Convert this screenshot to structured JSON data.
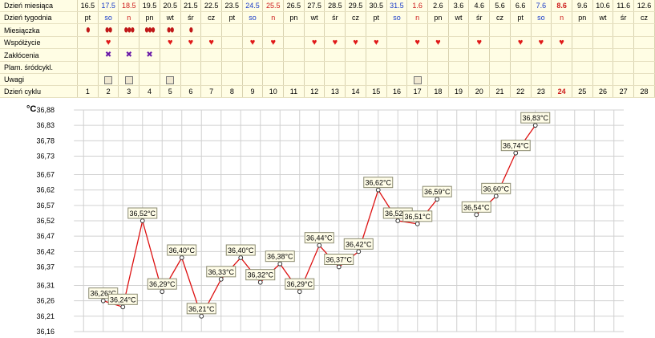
{
  "calendar": {
    "row_labels": {
      "day_of_month": "Dzień miesiąca",
      "day_of_week": "Dzień tygodnia",
      "menstruation": "Miesiączka",
      "intercourse": "Współżycie",
      "disturbances": "Zakłócenia",
      "spotting": "Plam. śródcykl.",
      "notes": "Uwagi",
      "cycle_day": "Dzień cyklu"
    },
    "days": [
      {
        "dom": "16.5",
        "dow": "pt",
        "tone": "black",
        "menses": 1,
        "love": false,
        "dist": false,
        "note": false,
        "cycle": "1"
      },
      {
        "dom": "17.5",
        "dow": "so",
        "tone": "blue",
        "menses": 2,
        "love": true,
        "dist": true,
        "note": true,
        "cycle": "2"
      },
      {
        "dom": "18.5",
        "dow": "n",
        "tone": "red",
        "menses": 3,
        "love": false,
        "dist": true,
        "note": true,
        "cycle": "3"
      },
      {
        "dom": "19.5",
        "dow": "pn",
        "tone": "black",
        "menses": 3,
        "love": false,
        "dist": true,
        "note": false,
        "cycle": "4"
      },
      {
        "dom": "20.5",
        "dow": "wt",
        "tone": "black",
        "menses": 2,
        "love": true,
        "dist": false,
        "note": true,
        "cycle": "5"
      },
      {
        "dom": "21.5",
        "dow": "śr",
        "tone": "black",
        "menses": 1,
        "love": true,
        "dist": false,
        "note": false,
        "cycle": "6"
      },
      {
        "dom": "22.5",
        "dow": "cz",
        "tone": "black",
        "menses": 0,
        "love": true,
        "dist": false,
        "note": false,
        "cycle": "7"
      },
      {
        "dom": "23.5",
        "dow": "pt",
        "tone": "black",
        "menses": 0,
        "love": false,
        "dist": false,
        "note": false,
        "cycle": "8"
      },
      {
        "dom": "24.5",
        "dow": "so",
        "tone": "blue",
        "menses": 0,
        "love": true,
        "dist": false,
        "note": false,
        "cycle": "9"
      },
      {
        "dom": "25.5",
        "dow": "n",
        "tone": "red",
        "menses": 0,
        "love": true,
        "dist": false,
        "note": false,
        "cycle": "10"
      },
      {
        "dom": "26.5",
        "dow": "pn",
        "tone": "black",
        "menses": 0,
        "love": false,
        "dist": false,
        "note": false,
        "cycle": "11"
      },
      {
        "dom": "27.5",
        "dow": "wt",
        "tone": "black",
        "menses": 0,
        "love": true,
        "dist": false,
        "note": false,
        "cycle": "12"
      },
      {
        "dom": "28.5",
        "dow": "śr",
        "tone": "black",
        "menses": 0,
        "love": true,
        "dist": false,
        "note": false,
        "cycle": "13"
      },
      {
        "dom": "29.5",
        "dow": "cz",
        "tone": "black",
        "menses": 0,
        "love": true,
        "dist": false,
        "note": false,
        "cycle": "14"
      },
      {
        "dom": "30.5",
        "dow": "pt",
        "tone": "black",
        "menses": 0,
        "love": true,
        "dist": false,
        "note": false,
        "cycle": "15"
      },
      {
        "dom": "31.5",
        "dow": "so",
        "tone": "blue",
        "menses": 0,
        "love": false,
        "dist": false,
        "note": false,
        "cycle": "16"
      },
      {
        "dom": "1.6",
        "dow": "n",
        "tone": "red",
        "menses": 0,
        "love": true,
        "dist": false,
        "note": true,
        "cycle": "17"
      },
      {
        "dom": "2.6",
        "dow": "pn",
        "tone": "black",
        "menses": 0,
        "love": true,
        "dist": false,
        "note": false,
        "cycle": "18"
      },
      {
        "dom": "3.6",
        "dow": "wt",
        "tone": "black",
        "menses": 0,
        "love": false,
        "dist": false,
        "note": false,
        "cycle": "19"
      },
      {
        "dom": "4.6",
        "dow": "śr",
        "tone": "black",
        "menses": 0,
        "love": true,
        "dist": false,
        "note": false,
        "cycle": "20"
      },
      {
        "dom": "5.6",
        "dow": "cz",
        "tone": "black",
        "menses": 0,
        "love": false,
        "dist": false,
        "note": false,
        "cycle": "21"
      },
      {
        "dom": "6.6",
        "dow": "pt",
        "tone": "black",
        "menses": 0,
        "love": true,
        "dist": false,
        "note": false,
        "cycle": "22"
      },
      {
        "dom": "7.6",
        "dow": "so",
        "tone": "blue",
        "menses": 0,
        "love": true,
        "dist": false,
        "note": false,
        "cycle": "23"
      },
      {
        "dom": "8.6",
        "dow": "n",
        "tone": "red",
        "menses": 0,
        "love": true,
        "dist": false,
        "note": false,
        "cycle": "24",
        "today": true
      },
      {
        "dom": "9.6",
        "dow": "pn",
        "tone": "black",
        "menses": 0,
        "love": false,
        "dist": false,
        "note": false,
        "cycle": "25"
      },
      {
        "dom": "10.6",
        "dow": "wt",
        "tone": "black",
        "menses": 0,
        "love": false,
        "dist": false,
        "note": false,
        "cycle": "26"
      },
      {
        "dom": "11.6",
        "dow": "śr",
        "tone": "black",
        "menses": 0,
        "love": false,
        "dist": false,
        "note": false,
        "cycle": "27"
      },
      {
        "dom": "12.6",
        "dow": "cz",
        "tone": "black",
        "menses": 0,
        "love": false,
        "dist": false,
        "note": false,
        "cycle": "28"
      }
    ],
    "colors": {
      "weekday": "#000000",
      "saturday": "#1a3cc8",
      "sunday": "#cc1a1a",
      "heart": "#e01818",
      "disturbance": "#6a1aa8",
      "background": "#fffde4"
    },
    "icons": {
      "menstruation": "blood-drop-icon",
      "intercourse": "heart-icon",
      "disturbance": "x-mark-icon",
      "notes": "note-icon"
    }
  },
  "chart_data": {
    "type": "line",
    "ylabel": "°C",
    "ylim": [
      36.16,
      36.88
    ],
    "yticks": [
      "36,88",
      "36,83",
      "36,78",
      "36,73",
      "36,67",
      "36,62",
      "36,57",
      "36,52",
      "36,47",
      "36,42",
      "36,37",
      "36,31",
      "36,26",
      "36,21",
      "36,16"
    ],
    "ytick_values": [
      36.88,
      36.83,
      36.78,
      36.73,
      36.67,
      36.62,
      36.57,
      36.52,
      36.47,
      36.42,
      36.37,
      36.31,
      36.26,
      36.21,
      36.16
    ],
    "x_cycle_days": [
      1,
      28
    ],
    "grid": true,
    "line_color": "#dd1111",
    "segments": [
      [
        2,
        3,
        4,
        5,
        6,
        7,
        8,
        9,
        10,
        11,
        12,
        13,
        14,
        15,
        16,
        17,
        18,
        19
      ],
      [
        21,
        22,
        23,
        24
      ]
    ],
    "points": [
      {
        "day": 2,
        "value": 36.26,
        "label": "36,26°C"
      },
      {
        "day": 3,
        "value": 36.24,
        "label": "36,24°C"
      },
      {
        "day": 4,
        "value": 36.52,
        "label": "36,52°C"
      },
      {
        "day": 5,
        "value": 36.29,
        "label": "36,29°C"
      },
      {
        "day": 6,
        "value": 36.4,
        "label": "36,40°C"
      },
      {
        "day": 7,
        "value": 36.21,
        "label": "36,21°C"
      },
      {
        "day": 8,
        "value": 36.33,
        "label": "36,33°C"
      },
      {
        "day": 9,
        "value": 36.4,
        "label": "36,40°C"
      },
      {
        "day": 10,
        "value": 36.32,
        "label": "36,32°C"
      },
      {
        "day": 11,
        "value": 36.38,
        "label": "36,38°C"
      },
      {
        "day": 12,
        "value": 36.29,
        "label": "36,29°C"
      },
      {
        "day": 13,
        "value": 36.44,
        "label": "36,44°C"
      },
      {
        "day": 14,
        "value": 36.37,
        "label": "36,37°C"
      },
      {
        "day": 15,
        "value": 36.42,
        "label": "36,42°C"
      },
      {
        "day": 16,
        "value": 36.62,
        "label": "36,62°C"
      },
      {
        "day": 17,
        "value": 36.52,
        "label": "36,52°C"
      },
      {
        "day": 18,
        "value": 36.51,
        "label": "36,51°C"
      },
      {
        "day": 19,
        "value": 36.59,
        "label": "36,59°C"
      },
      {
        "day": 21,
        "value": 36.54,
        "label": "36,54°C"
      },
      {
        "day": 22,
        "value": 36.6,
        "label": "36,60°C"
      },
      {
        "day": 23,
        "value": 36.74,
        "label": "36,74°C"
      },
      {
        "day": 24,
        "value": 36.83,
        "label": "36,83°C"
      }
    ]
  }
}
